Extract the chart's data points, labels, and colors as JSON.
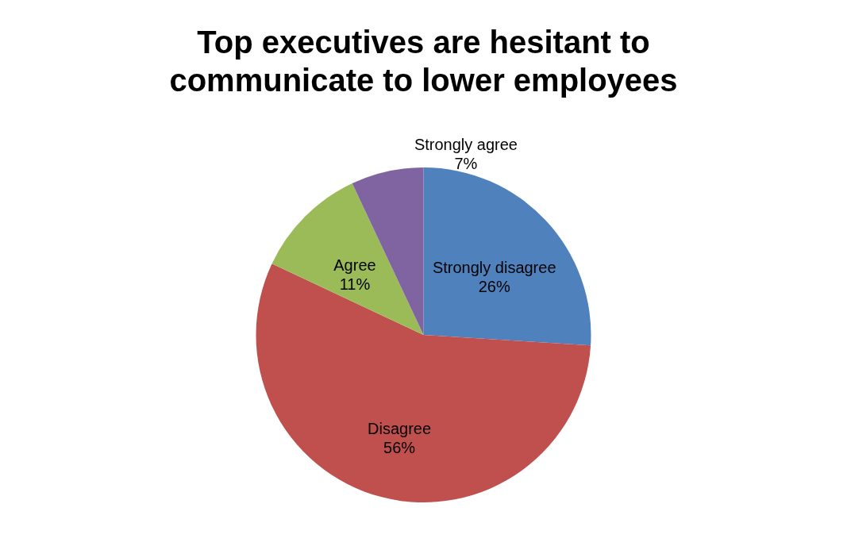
{
  "chart_data": {
    "type": "pie",
    "title": "Top executives are hesitant to communicate to lower employees",
    "categories": [
      "Strongly disagree",
      "Disagree",
      "Agree",
      "Strongly agree"
    ],
    "values": [
      26,
      56,
      11,
      7
    ],
    "colors": [
      "#4f81bd",
      "#c0504d",
      "#9bbb59",
      "#8064a2"
    ],
    "value_labels": [
      "26%",
      "56%",
      "11%",
      "7%"
    ],
    "legend": false
  }
}
